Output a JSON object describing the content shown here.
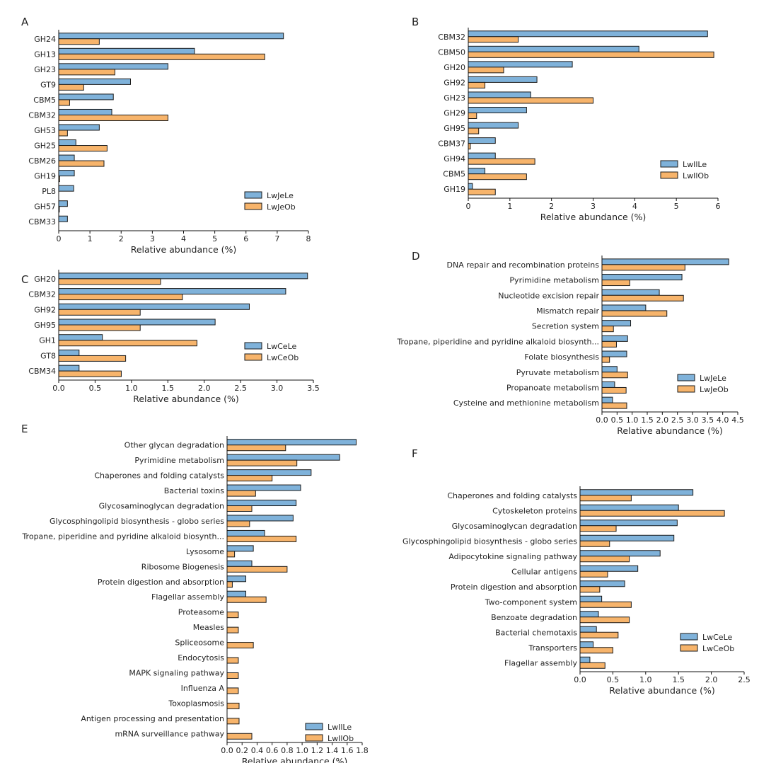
{
  "colors": {
    "series_a": "#7fb2da",
    "series_b": "#f7b46b",
    "edge": "#1a1a1a"
  },
  "chart_data": [
    {
      "panel": "A",
      "type": "bar",
      "orientation": "horizontal",
      "categories": [
        "GH24",
        "GH13",
        "GH23",
        "GT9",
        "CBM5",
        "CBM32",
        "GH53",
        "GH25",
        "CBM26",
        "GH19",
        "PL8",
        "GH57",
        "CBM33"
      ],
      "series": [
        {
          "name": "LwJeLe",
          "values": [
            7.2,
            4.35,
            3.5,
            2.3,
            1.75,
            1.7,
            1.3,
            0.55,
            0.5,
            0.5,
            0.48,
            0.28,
            0.28
          ]
        },
        {
          "name": "LwJeOb",
          "values": [
            1.3,
            6.6,
            1.8,
            0.8,
            0.35,
            3.5,
            0.28,
            1.55,
            1.45,
            0.03,
            0,
            0.02,
            0
          ]
        }
      ],
      "xlabel": "Relative abundance (%)",
      "xlim": [
        0,
        8
      ],
      "xticks": [
        "0",
        "1",
        "2",
        "3",
        "4",
        "5",
        "6",
        "7",
        "8"
      ],
      "legend": "bottom-right"
    },
    {
      "panel": "B",
      "type": "bar",
      "orientation": "horizontal",
      "categories": [
        "CBM32",
        "CBM50",
        "GH20",
        "GH92",
        "GH23",
        "GH29",
        "GH95",
        "CBM37",
        "GH94",
        "CBM5",
        "GH19"
      ],
      "series": [
        {
          "name": "LwIlLe",
          "values": [
            5.75,
            4.1,
            2.5,
            1.65,
            1.5,
            1.4,
            1.2,
            0.65,
            0.65,
            0.4,
            0.1
          ]
        },
        {
          "name": "LwIlOb",
          "values": [
            1.2,
            5.9,
            0.85,
            0.4,
            3.0,
            0.2,
            0.25,
            0.05,
            1.6,
            1.4,
            0.65
          ]
        }
      ],
      "xlabel": "Relative abundance (%)",
      "xlim": [
        0,
        6
      ],
      "xticks": [
        "0",
        "1",
        "2",
        "3",
        "4",
        "5",
        "6"
      ],
      "legend": "bottom-right"
    },
    {
      "panel": "C",
      "type": "bar",
      "orientation": "horizontal",
      "categories": [
        "GH20",
        "CBM32",
        "GH92",
        "GH95",
        "GH1",
        "GT8",
        "CBM34"
      ],
      "series": [
        {
          "name": "LwCeLe",
          "values": [
            3.42,
            3.12,
            2.62,
            2.15,
            0.6,
            0.28,
            0.28
          ]
        },
        {
          "name": "LwCeOb",
          "values": [
            1.4,
            1.7,
            1.12,
            1.12,
            1.9,
            0.92,
            0.86
          ]
        }
      ],
      "xlabel": "Relative abundance (%)",
      "xlim": [
        0,
        3.5
      ],
      "xticks": [
        "0.0",
        "0.5",
        "1.0",
        "1.5",
        "2.0",
        "2.5",
        "3.0",
        "3.5"
      ],
      "legend": "bottom-right"
    },
    {
      "panel": "D",
      "type": "bar",
      "orientation": "horizontal",
      "categories": [
        "DNA repair and recombination proteins",
        "Pyrimidine metabolism",
        "Nucleotide excision repair",
        "Mismatch repair",
        "Secretion system",
        "Tropane, piperidine and pyridine alkaloid biosynth...",
        "Folate biosynthesis",
        "Pyruvate metabolism",
        "Propanoate metabolism",
        "Cysteine and methionine metabolism"
      ],
      "series": [
        {
          "name": "LwJeLe",
          "values": [
            4.2,
            2.65,
            1.9,
            1.45,
            0.95,
            0.85,
            0.82,
            0.5,
            0.42,
            0.35
          ]
        },
        {
          "name": "LwJeOb",
          "values": [
            2.75,
            0.92,
            2.7,
            2.15,
            0.38,
            0.48,
            0.25,
            0.85,
            0.8,
            0.82
          ]
        }
      ],
      "xlabel": "Relative abundance (%)",
      "xlim": [
        0,
        4.5
      ],
      "xticks": [
        "0.0",
        "0.5",
        "1.0",
        "1.5",
        "2.0",
        "2.5",
        "3.0",
        "3.5",
        "4.0",
        "4.5"
      ],
      "legend": "bottom-right"
    },
    {
      "panel": "E",
      "type": "bar",
      "orientation": "horizontal",
      "categories": [
        "Other glycan degradation",
        "Pyrimidine metabolism",
        "Chaperones and folding catalysts",
        "Bacterial toxins",
        "Glycosaminoglycan degradation",
        "Glycosphingolipid biosynthesis - globo series",
        "Tropane, piperidine and pyridine alkaloid biosynth...",
        "Lysosome",
        "Ribosome Biogenesis",
        "Protein digestion and absorption",
        "Flagellar assembly",
        "Proteasome",
        "Measles",
        "Spliceosome",
        "Endocytosis",
        "MAPK signaling pathway",
        "Influenza A",
        "Toxoplasmosis",
        "Antigen processing and presentation",
        "mRNA surveillance pathway"
      ],
      "series": [
        {
          "name": "LwIlLe",
          "values": [
            1.72,
            1.5,
            1.12,
            0.98,
            0.92,
            0.88,
            0.5,
            0.35,
            0.33,
            0.25,
            0.25,
            0,
            0,
            0,
            0,
            0,
            0,
            0,
            0,
            0
          ]
        },
        {
          "name": "LwIlOb",
          "values": [
            0.78,
            0.93,
            0.6,
            0.38,
            0.33,
            0.3,
            0.92,
            0.1,
            0.8,
            0.07,
            0.52,
            0.15,
            0.15,
            0.35,
            0.15,
            0.15,
            0.15,
            0.16,
            0.16,
            0.33
          ]
        }
      ],
      "xlabel": "Relative abundance (%)",
      "xlim": [
        0,
        1.8
      ],
      "xticks": [
        "0.0",
        "0.2",
        "0.4",
        "0.6",
        "0.8",
        "1.0",
        "1.2",
        "1.4",
        "1.6",
        "1.8"
      ],
      "legend": "bottom-right"
    },
    {
      "panel": "F",
      "type": "bar",
      "orientation": "horizontal",
      "categories": [
        "Chaperones and folding catalysts",
        "Cytoskeleton proteins",
        "Glycosaminoglycan degradation",
        "Glycosphingolipid biosynthesis - globo series",
        "Adipocytokine signaling pathway",
        "Cellular antigens",
        "Protein digestion and absorption",
        "Two-component system",
        "Benzoate degradation",
        "Bacterial chemotaxis",
        "Transporters",
        "Flagellar assembly"
      ],
      "series": [
        {
          "name": "LwCeLe",
          "values": [
            1.72,
            1.5,
            1.48,
            1.43,
            1.22,
            0.88,
            0.68,
            0.33,
            0.28,
            0.25,
            0.2,
            0.15
          ]
        },
        {
          "name": "LwCeOb",
          "values": [
            0.78,
            2.2,
            0.55,
            0.45,
            0.75,
            0.42,
            0.3,
            0.78,
            0.75,
            0.58,
            0.5,
            0.38
          ]
        }
      ],
      "xlabel": "Relative abundance (%)",
      "xlim": [
        0,
        2.5
      ],
      "xticks": [
        "0.0",
        "0.5",
        "1.0",
        "1.5",
        "2.0",
        "2.5"
      ],
      "legend": "bottom-right"
    }
  ]
}
